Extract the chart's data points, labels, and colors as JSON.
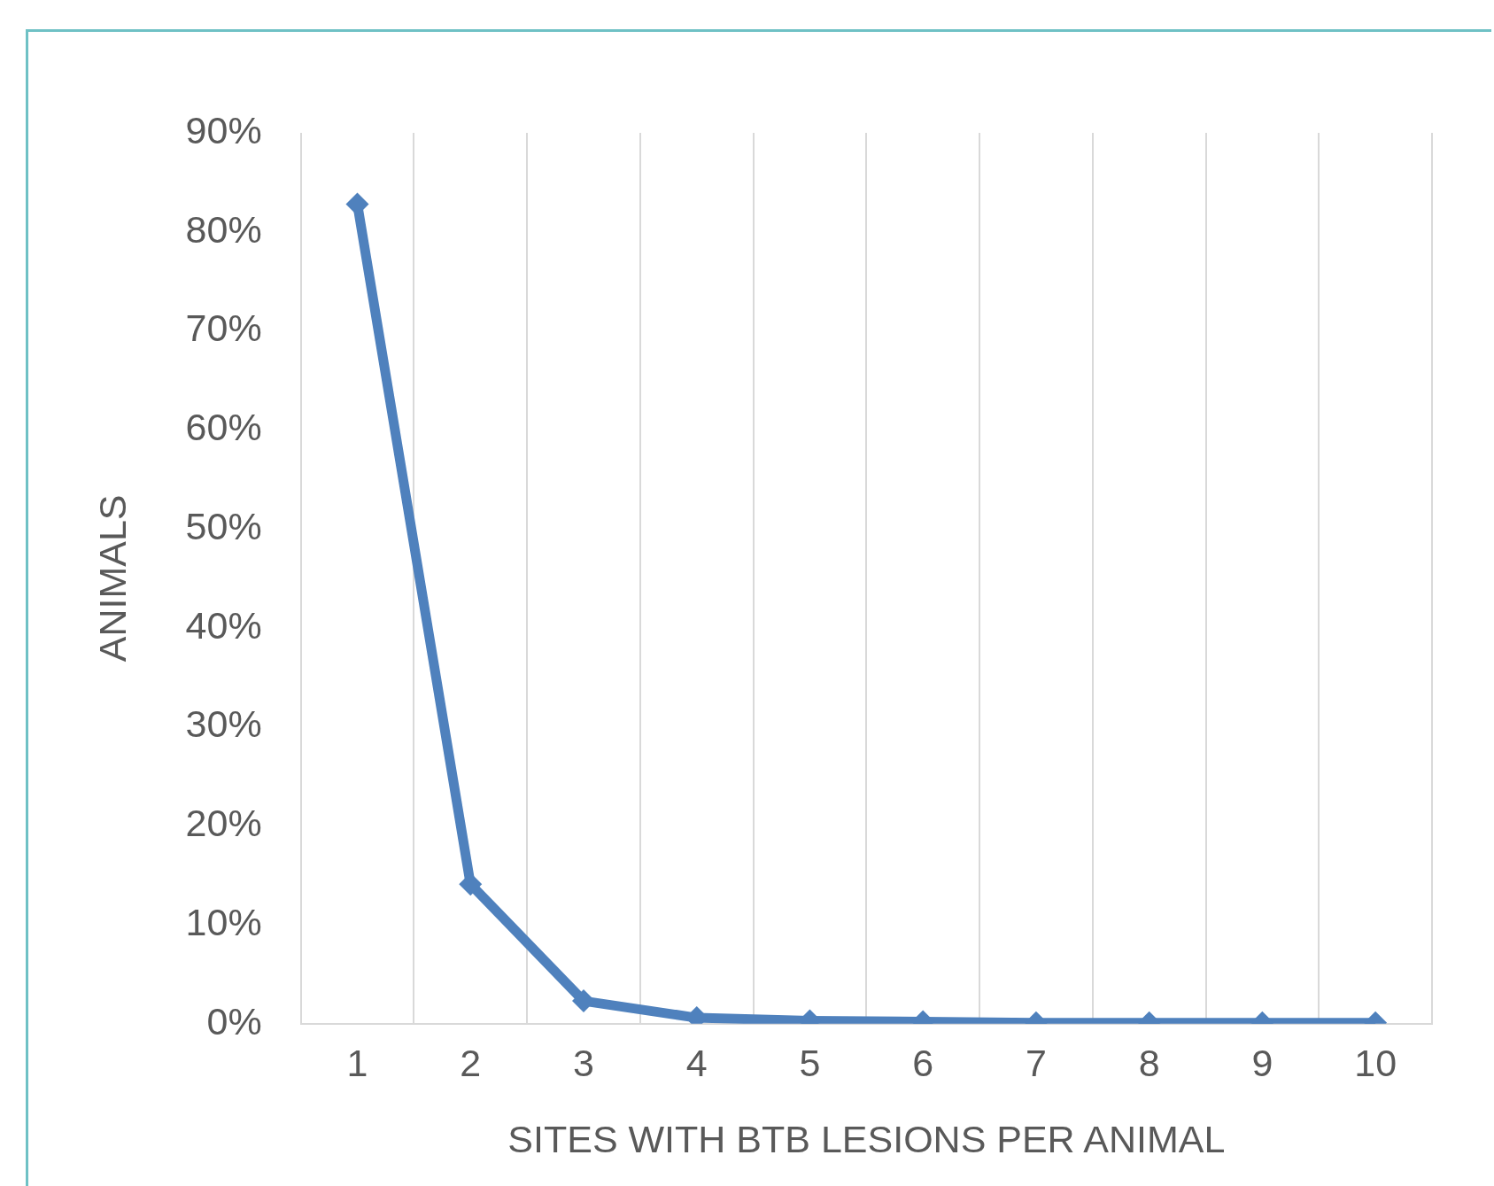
{
  "chart_data": {
    "type": "line",
    "xlabel": "SITES WITH BTB LESIONS PER ANIMAL",
    "ylabel": "ANIMALS",
    "categories": [
      "1",
      "2",
      "3",
      "4",
      "5",
      "6",
      "7",
      "8",
      "9",
      "10"
    ],
    "series": [
      {
        "color": "#4f81bd",
        "values": [
          82.8,
          14.1,
          2.3,
          0.6,
          0.3,
          0.2,
          0.1,
          0.1,
          0.1,
          0.1
        ]
      }
    ],
    "ylim": [
      0,
      90
    ],
    "yticks": [
      {
        "value": 0,
        "label": "0%"
      },
      {
        "value": 10,
        "label": "10%"
      },
      {
        "value": 20,
        "label": "20%"
      },
      {
        "value": 30,
        "label": "30%"
      },
      {
        "value": 40,
        "label": "40%"
      },
      {
        "value": 50,
        "label": "50%"
      },
      {
        "value": 60,
        "label": "60%"
      },
      {
        "value": 70,
        "label": "70%"
      },
      {
        "value": 80,
        "label": "80%"
      },
      {
        "value": 90,
        "label": "90%"
      }
    ],
    "grid": "x",
    "marker": "diamond",
    "line_style": "solid"
  }
}
